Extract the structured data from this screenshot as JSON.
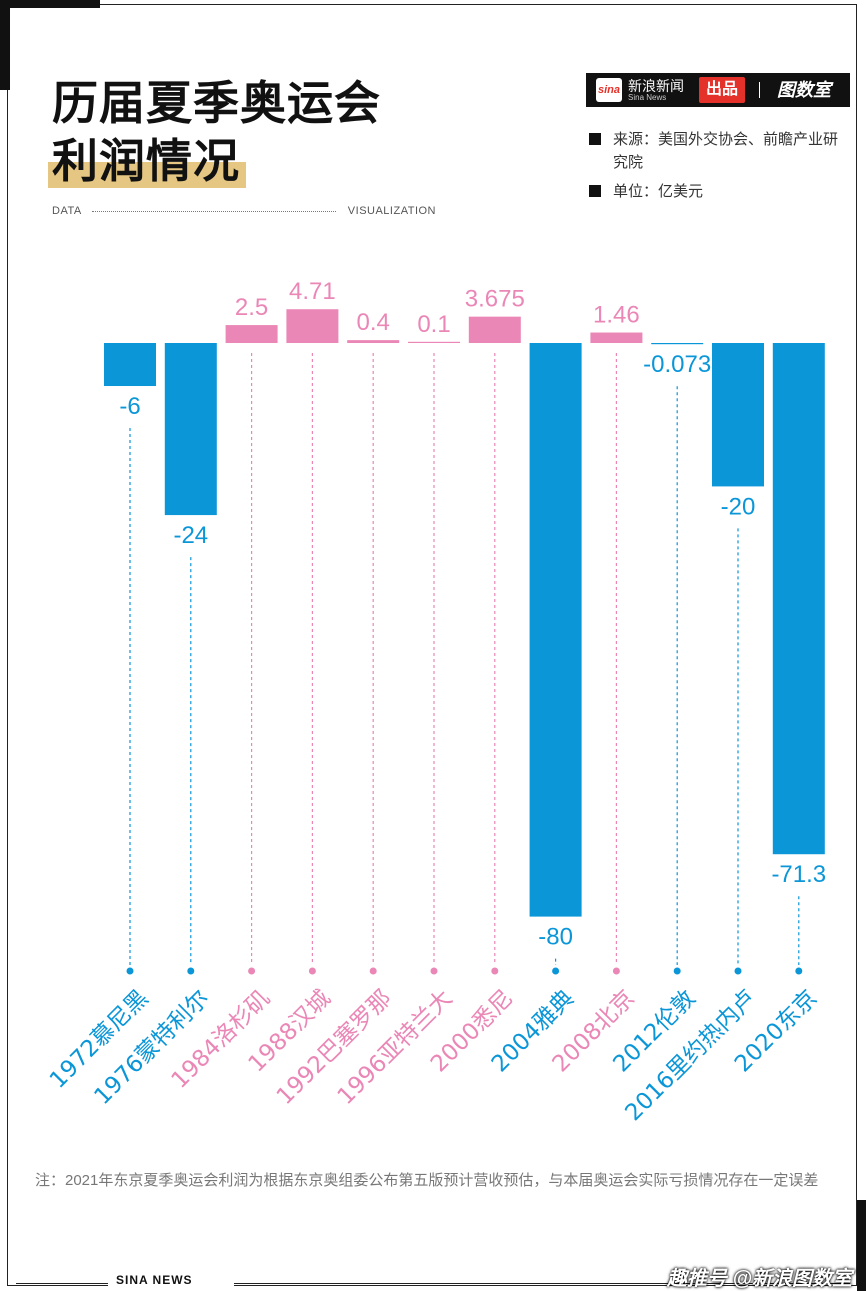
{
  "title": {
    "line1": "历届夏季奥运会",
    "line2": "利润情况"
  },
  "data_label": "DATA",
  "visualization_label": "VISUALIZATION",
  "brand": {
    "logo_text": "sina",
    "name": "新浪新闻",
    "name_en": "Sina News",
    "badge": "出品",
    "product": "图数室"
  },
  "source": "来源：美国外交协会、前瞻产业研究院",
  "unit": "单位：亿美元",
  "note": "注：2021年东京夏季奥运会利润为根据东京奥组委公布第五版预计营收预估，与本届奥运会实际亏损情况存在一定误差",
  "footer": "SINA NEWS",
  "watermark": "趣推号 @新浪图数室",
  "colors": {
    "negative": "#0b96d8",
    "positive": "#ea87b6"
  },
  "chart_data": {
    "type": "bar",
    "categories": [
      "1972慕尼黑",
      "1976蒙特利尔",
      "1984洛杉矶",
      "1988汉城",
      "1992巴塞罗那",
      "1996亚特兰大",
      "2000悉尼",
      "2004雅典",
      "2008北京",
      "2012伦敦",
      "2016里约热内卢",
      "2020东京"
    ],
    "values": [
      -6,
      -24,
      2.5,
      4.71,
      0.4,
      0.1,
      3.675,
      -80,
      1.46,
      -0.073,
      -20,
      -71.3
    ],
    "value_labels": [
      "-6",
      "-24",
      "2.5",
      "4.71",
      "0.4",
      "0.1",
      "3.675",
      "-80",
      "1.46",
      "-0.073",
      "-20",
      "-71.3"
    ],
    "ylabel": "",
    "xlabel": "",
    "ylim": [
      -80,
      4.71
    ]
  }
}
